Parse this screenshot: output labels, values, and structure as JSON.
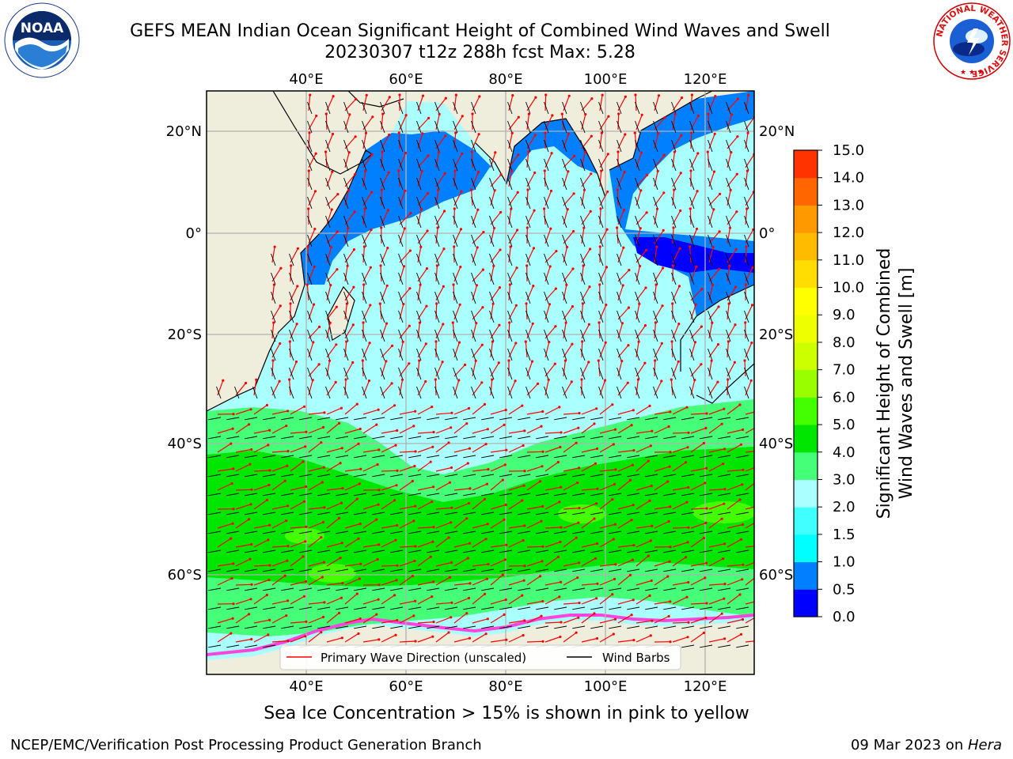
{
  "header": {
    "title_line1": "GEFS MEAN Indian Ocean Significant Height of Combined Wind Waves and Swell",
    "title_line2": "20230307 t12z 288h fcst   Max: 5.28"
  },
  "map": {
    "region": "Indian Ocean",
    "lon_ticks": [
      "40°E",
      "60°E",
      "80°E",
      "100°E",
      "120°E"
    ],
    "lat_ticks": [
      "20°N",
      "0°",
      "20°S",
      "40°S",
      "60°S"
    ],
    "legend": {
      "primary_wave": "Primary Wave Direction (unscaled)",
      "wind_barbs": "Wind Barbs"
    },
    "colors": {
      "land": "#efeddc",
      "primary_wave_arrow": "#ff0000",
      "wind_barb": "#000000",
      "sea_ice": "#ff44dd"
    }
  },
  "colorbar": {
    "label_line1": "Significant Height of Combined",
    "label_line2": "Wind Waves and Swell [m]",
    "ticks": [
      "15.0",
      "14.0",
      "13.0",
      "12.0",
      "11.0",
      "10.0",
      "9.0",
      "8.0",
      "7.0",
      "6.0",
      "5.0",
      "4.0",
      "3.0",
      "2.0",
      "1.5",
      "1.0",
      "0.5",
      "0.0"
    ],
    "colors": [
      "#0000ff",
      "#0080ff",
      "#00ffff",
      "#40ffff",
      "#aaffff",
      "#44ff77",
      "#00e600",
      "#44ff00",
      "#99ff00",
      "#ccff00",
      "#eeff00",
      "#ffff00",
      "#ffdd00",
      "#ffbb00",
      "#ff9900",
      "#ff6600",
      "#ff3300"
    ]
  },
  "subtitle": "Sea Ice Concentration > 15% is shown in pink to yellow",
  "footer": {
    "left": "NCEP/EMC/Verification Post Processing Product Generation Branch",
    "right_date": "09 Mar 2023 on ",
    "right_host": "Hera"
  },
  "logos": {
    "noaa": "NOAA",
    "nws_ring": "NATIONAL WEATHER SERVICE"
  }
}
